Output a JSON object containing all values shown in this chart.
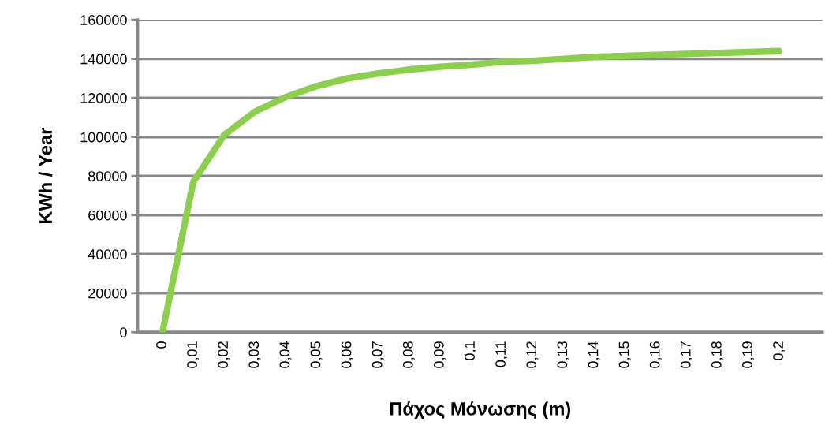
{
  "chart_data": {
    "type": "line",
    "xlabel": "Πάχος Μόνωσης (m)",
    "ylabel": "KWh / Year",
    "categories": [
      "0",
      "0,01",
      "0,02",
      "0,03",
      "0,04",
      "0,05",
      "0,06",
      "0,07",
      "0,08",
      "0,09",
      "0,1",
      "0,11",
      "0,12",
      "0,13",
      "0,14",
      "0,15",
      "0,16",
      "0,17",
      "0,18",
      "0,19",
      "0,2"
    ],
    "series": [
      {
        "color": "#8ccf4d",
        "values": [
          0,
          77000,
          101000,
          113000,
          120500,
          126000,
          130000,
          132500,
          134500,
          136000,
          137000,
          138500,
          139000,
          140000,
          141000,
          141500,
          142000,
          142500,
          143000,
          143500,
          144000
        ]
      }
    ],
    "ylim": [
      0,
      160000
    ],
    "yticks": [
      0,
      20000,
      40000,
      60000,
      80000,
      100000,
      120000,
      140000,
      160000
    ],
    "grid": "y",
    "legend": false,
    "marker": "none",
    "line_style": "solid"
  }
}
